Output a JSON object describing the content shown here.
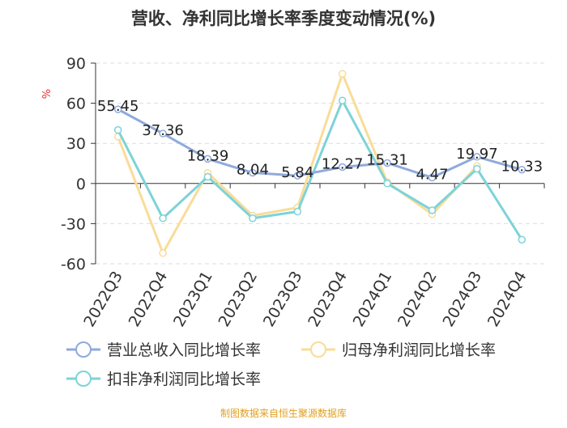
{
  "chart_data": {
    "type": "line",
    "title": "营收、净利同比增长率季度变动情况(%)",
    "ylabel": "%",
    "xlabel": "",
    "categories": [
      "2022Q3",
      "2022Q4",
      "2023Q1",
      "2023Q2",
      "2023Q3",
      "2023Q4",
      "2024Q1",
      "2024Q2",
      "2024Q3",
      "2024Q4"
    ],
    "ylim": [
      -60,
      90
    ],
    "yticks": [
      90,
      60,
      30,
      0,
      -30,
      -60
    ],
    "grid": "horizontal dashed",
    "legend_position": "bottom",
    "series": [
      {
        "name": "营业总收入同比增长率",
        "color": "#8faadc",
        "values": [
          55.45,
          37.36,
          18.39,
          8.04,
          5.84,
          12.27,
          15.31,
          4.47,
          19.97,
          10.33
        ],
        "labels": [
          "55.45",
          "37.36",
          "18.39",
          "8.04",
          "5.84",
          "12.27",
          "15.31",
          "4.47",
          "19.97",
          "10.33"
        ]
      },
      {
        "name": "归母净利润同比增长率",
        "color": "#f9dc98",
        "values": [
          35,
          -52,
          8,
          -24,
          -18,
          82,
          1,
          -23,
          13,
          null
        ]
      },
      {
        "name": "扣非净利润同比增长率",
        "color": "#7dd3d8",
        "values": [
          40,
          -26,
          5,
          -26,
          -21,
          62,
          0,
          -20,
          11,
          -42
        ]
      }
    ]
  },
  "source_note": "制图数据来自恒生聚源数据库",
  "colors": {
    "axis": "#333333",
    "grid": "#dddddd",
    "ylabel": "#e03030",
    "source": "#e0a020"
  }
}
